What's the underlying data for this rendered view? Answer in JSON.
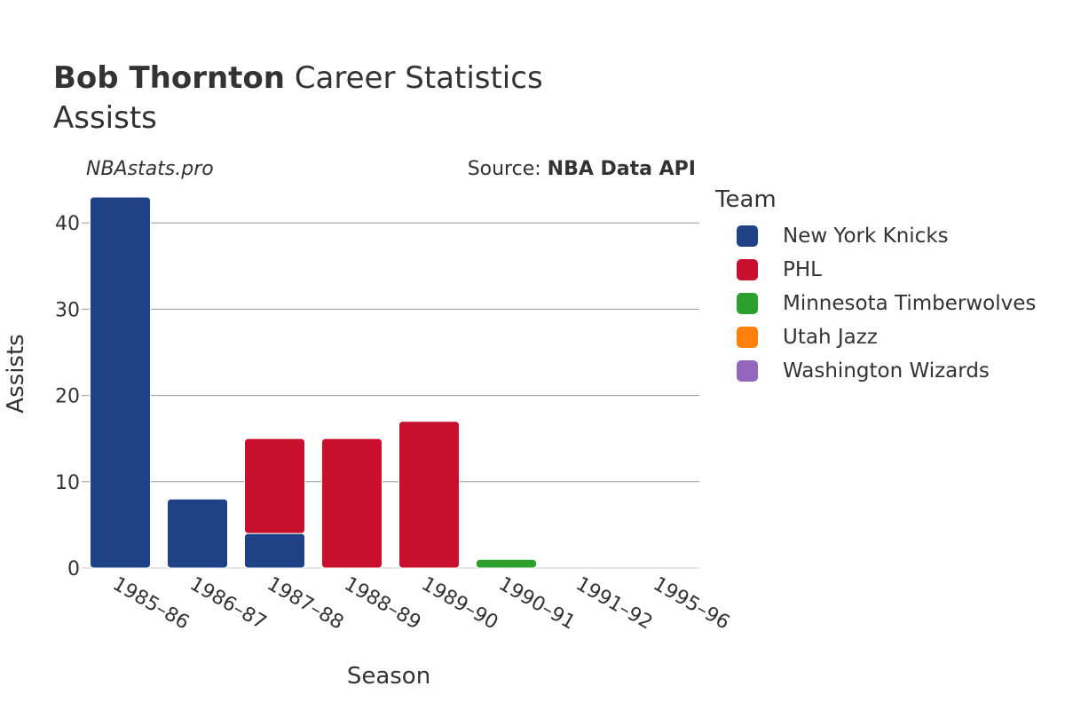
{
  "header": {
    "player": "Bob Thornton",
    "title_rest": "Career Statistics",
    "subtitle": "Assists",
    "site": "NBAstats.pro",
    "source_prefix": "Source: ",
    "source_name": "NBA Data API"
  },
  "legend": {
    "title": "Team",
    "items": [
      {
        "label": "New York Knicks",
        "color": "#1f4287"
      },
      {
        "label": "PHL",
        "color": "#c8102e"
      },
      {
        "label": "Minnesota Timberwolves",
        "color": "#2ca02c"
      },
      {
        "label": "Utah Jazz",
        "color": "#ff7f0e"
      },
      {
        "label": "Washington Wizards",
        "color": "#9467bd"
      }
    ]
  },
  "chart_data": {
    "type": "bar",
    "stacked": true,
    "title": "Bob Thornton Career Statistics",
    "subtitle": "Assists",
    "xlabel": "Season",
    "ylabel": "Assists",
    "ylim": [
      0,
      43
    ],
    "yticks": [
      0,
      10,
      20,
      30,
      40
    ],
    "grid": true,
    "legend_position": "right",
    "categories": [
      "1985–86",
      "1986–87",
      "1987–88",
      "1988–89",
      "1989–90",
      "1990–91",
      "1991–92",
      "1995–96"
    ],
    "series": [
      {
        "name": "New York Knicks",
        "color": "#1f4287",
        "values": [
          43,
          8,
          4,
          0,
          0,
          0,
          0,
          0
        ]
      },
      {
        "name": "PHL",
        "color": "#c8102e",
        "values": [
          0,
          0,
          11,
          15,
          17,
          0,
          0,
          0
        ]
      },
      {
        "name": "Minnesota Timberwolves",
        "color": "#2ca02c",
        "values": [
          0,
          0,
          0,
          0,
          0,
          1,
          0,
          0
        ]
      },
      {
        "name": "Utah Jazz",
        "color": "#ff7f0e",
        "values": [
          0,
          0,
          0,
          0,
          0,
          0,
          0,
          0
        ]
      },
      {
        "name": "Washington Wizards",
        "color": "#9467bd",
        "values": [
          0,
          0,
          0,
          0,
          0,
          0,
          0,
          0
        ]
      }
    ]
  }
}
